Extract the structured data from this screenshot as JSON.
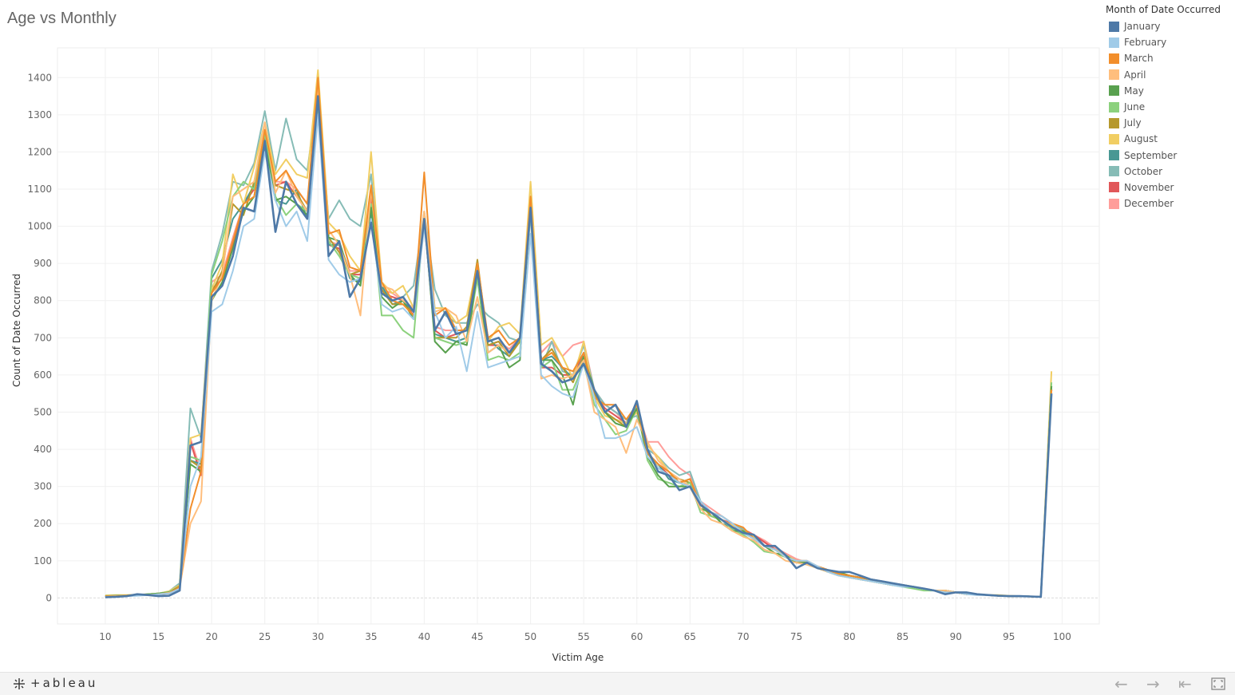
{
  "title": "Age vs Monthly",
  "footer": {
    "brand": "+ableau",
    "icons": [
      "undo-icon",
      "redo-icon",
      "revert-icon",
      "fullscreen-icon"
    ]
  },
  "legend": {
    "title": "Month of Date Occurred"
  },
  "chart_data": {
    "type": "line",
    "title": "Age vs Monthly",
    "xlabel": "Victim Age",
    "ylabel": "Count of Date Occurred",
    "xlim": [
      5.5,
      103.5
    ],
    "ylim": [
      -70,
      1480
    ],
    "x_ticks": [
      10,
      15,
      20,
      25,
      30,
      35,
      40,
      45,
      50,
      55,
      60,
      65,
      70,
      75,
      80,
      85,
      90,
      95,
      100
    ],
    "y_ticks": [
      0,
      100,
      200,
      300,
      400,
      500,
      600,
      700,
      800,
      900,
      1000,
      1100,
      1200,
      1300,
      1400
    ],
    "grid": true,
    "legend_position": "right",
    "x": [
      10,
      11,
      12,
      13,
      14,
      15,
      16,
      17,
      18,
      19,
      20,
      21,
      22,
      23,
      24,
      25,
      26,
      27,
      28,
      29,
      30,
      31,
      32,
      33,
      34,
      35,
      36,
      37,
      38,
      39,
      40,
      41,
      42,
      43,
      44,
      45,
      46,
      47,
      48,
      49,
      50,
      51,
      52,
      53,
      54,
      55,
      56,
      57,
      58,
      59,
      60,
      61,
      62,
      63,
      64,
      65,
      66,
      67,
      68,
      69,
      70,
      71,
      72,
      73,
      74,
      75,
      76,
      77,
      78,
      79,
      80,
      81,
      82,
      83,
      84,
      85,
      86,
      87,
      88,
      89,
      90,
      91,
      92,
      93,
      94,
      95,
      96,
      97,
      98,
      99
    ],
    "series": [
      {
        "name": "January",
        "color": "#4e79a7",
        "values": [
          2,
          3,
          5,
          10,
          8,
          5,
          6,
          20,
          410,
          420,
          810,
          840,
          920,
          1050,
          1040,
          1230,
          985,
          1120,
          1060,
          1020,
          1350,
          920,
          960,
          810,
          860,
          1010,
          820,
          800,
          810,
          770,
          1020,
          720,
          770,
          710,
          720,
          880,
          690,
          700,
          660,
          700,
          1050,
          630,
          610,
          580,
          590,
          630,
          560,
          500,
          520,
          460,
          530,
          400,
          340,
          330,
          290,
          300,
          250,
          230,
          210,
          190,
          175,
          170,
          140,
          140,
          115,
          80,
          95,
          80,
          75,
          70,
          70,
          60,
          50,
          45,
          40,
          35,
          30,
          25,
          20,
          10,
          15,
          15,
          10,
          8,
          6,
          5,
          5,
          4,
          3,
          550
        ]
      },
      {
        "name": "February",
        "color": "#a0cbe8",
        "values": [
          3,
          4,
          5,
          6,
          8,
          10,
          12,
          25,
          300,
          380,
          770,
          790,
          880,
          1000,
          1020,
          1200,
          1070,
          1000,
          1040,
          960,
          1300,
          910,
          870,
          850,
          860,
          1020,
          790,
          770,
          780,
          750,
          1000,
          770,
          700,
          730,
          610,
          770,
          620,
          630,
          640,
          650,
          980,
          600,
          570,
          550,
          540,
          630,
          540,
          430,
          430,
          440,
          460,
          380,
          350,
          330,
          310,
          300,
          260,
          230,
          220,
          200,
          175,
          160,
          140,
          130,
          110,
          100,
          100,
          85,
          70,
          60,
          55,
          50,
          45,
          40,
          35,
          30,
          30,
          25,
          20,
          15,
          15,
          10,
          8,
          8,
          6,
          5,
          5,
          4,
          3,
          550
        ]
      },
      {
        "name": "March",
        "color": "#f28e2b",
        "values": [
          5,
          5,
          6,
          8,
          8,
          10,
          12,
          30,
          240,
          340,
          820,
          860,
          960,
          1060,
          1080,
          1260,
          1120,
          1150,
          1100,
          1060,
          1400,
          980,
          990,
          890,
          880,
          1110,
          850,
          800,
          790,
          760,
          1145,
          760,
          780,
          720,
          720,
          900,
          700,
          720,
          680,
          700,
          1080,
          640,
          660,
          620,
          610,
          660,
          540,
          520,
          520,
          480,
          520,
          390,
          360,
          340,
          310,
          320,
          250,
          230,
          220,
          200,
          190,
          160,
          140,
          130,
          110,
          100,
          100,
          85,
          75,
          65,
          60,
          55,
          50,
          45,
          40,
          35,
          30,
          25,
          20,
          15,
          15,
          10,
          10,
          8,
          6,
          5,
          5,
          4,
          3,
          560
        ]
      },
      {
        "name": "April",
        "color": "#ffbe7d",
        "values": [
          4,
          5,
          6,
          7,
          8,
          10,
          14,
          28,
          200,
          260,
          800,
          870,
          1080,
          1100,
          1120,
          1280,
          1090,
          1150,
          1080,
          1040,
          1380,
          990,
          950,
          870,
          760,
          1100,
          840,
          830,
          800,
          780,
          1040,
          770,
          780,
          760,
          690,
          810,
          660,
          680,
          660,
          700,
          1060,
          590,
          600,
          590,
          600,
          640,
          500,
          480,
          460,
          390,
          480,
          420,
          370,
          340,
          320,
          300,
          240,
          210,
          200,
          180,
          165,
          155,
          130,
          120,
          100,
          95,
          90,
          80,
          70,
          60,
          55,
          50,
          45,
          40,
          35,
          35,
          30,
          25,
          20,
          20,
          15,
          10,
          10,
          8,
          6,
          5,
          5,
          4,
          3,
          560
        ]
      },
      {
        "name": "May",
        "color": "#59a14f",
        "values": [
          5,
          6,
          6,
          8,
          10,
          12,
          15,
          30,
          360,
          340,
          800,
          850,
          940,
          1040,
          1080,
          1230,
          1070,
          1080,
          1060,
          1030,
          1350,
          970,
          960,
          870,
          840,
          1050,
          810,
          780,
          800,
          750,
          1030,
          690,
          660,
          690,
          680,
          880,
          660,
          680,
          620,
          640,
          1070,
          640,
          640,
          600,
          520,
          650,
          560,
          500,
          470,
          460,
          510,
          380,
          330,
          300,
          300,
          300,
          240,
          230,
          200,
          180,
          180,
          160,
          140,
          120,
          115,
          95,
          95,
          80,
          75,
          70,
          60,
          55,
          45,
          40,
          35,
          35,
          30,
          25,
          20,
          20,
          15,
          10,
          10,
          8,
          6,
          5,
          5,
          4,
          3,
          570
        ]
      },
      {
        "name": "June",
        "color": "#8cd17d",
        "values": [
          6,
          5,
          6,
          8,
          10,
          12,
          16,
          30,
          380,
          370,
          870,
          960,
          1080,
          1120,
          1100,
          1250,
          1080,
          1030,
          1060,
          1040,
          1330,
          960,
          920,
          870,
          860,
          1060,
          760,
          760,
          720,
          700,
          1030,
          700,
          690,
          680,
          690,
          860,
          640,
          650,
          640,
          660,
          1060,
          620,
          640,
          560,
          560,
          630,
          520,
          480,
          440,
          450,
          510,
          370,
          320,
          310,
          300,
          310,
          230,
          220,
          210,
          185,
          170,
          150,
          125,
          120,
          110,
          95,
          90,
          80,
          70,
          60,
          55,
          50,
          45,
          40,
          35,
          30,
          25,
          20,
          20,
          15,
          15,
          10,
          10,
          8,
          6,
          5,
          5,
          4,
          3,
          580
        ]
      },
      {
        "name": "July",
        "color": "#b6992d",
        "values": [
          5,
          6,
          7,
          9,
          10,
          12,
          15,
          32,
          370,
          350,
          820,
          880,
          1060,
          1030,
          1120,
          1250,
          1110,
          1100,
          1090,
          1040,
          1370,
          970,
          930,
          870,
          880,
          1100,
          830,
          790,
          790,
          770,
          1020,
          700,
          700,
          700,
          730,
          910,
          680,
          690,
          650,
          690,
          1060,
          640,
          670,
          620,
          580,
          650,
          550,
          500,
          480,
          460,
          510,
          390,
          350,
          330,
          320,
          310,
          250,
          220,
          210,
          190,
          180,
          160,
          140,
          130,
          110,
          95,
          95,
          85,
          75,
          65,
          60,
          55,
          45,
          45,
          40,
          35,
          30,
          25,
          20,
          20,
          15,
          10,
          10,
          8,
          6,
          5,
          5,
          4,
          3,
          570
        ]
      },
      {
        "name": "August",
        "color": "#f1ce63",
        "values": [
          7,
          8,
          8,
          9,
          10,
          12,
          18,
          35,
          430,
          440,
          830,
          900,
          1140,
          1060,
          1160,
          1280,
          1140,
          1180,
          1140,
          1130,
          1420,
          1010,
          980,
          920,
          880,
          1200,
          850,
          820,
          840,
          780,
          1040,
          780,
          780,
          740,
          760,
          900,
          690,
          730,
          740,
          710,
          1120,
          680,
          700,
          650,
          590,
          690,
          540,
          490,
          480,
          470,
          500,
          410,
          380,
          340,
          320,
          300,
          250,
          220,
          210,
          195,
          180,
          165,
          140,
          130,
          115,
          100,
          95,
          85,
          75,
          70,
          60,
          55,
          50,
          45,
          40,
          35,
          30,
          25,
          20,
          20,
          15,
          15,
          10,
          8,
          8,
          6,
          5,
          4,
          3,
          610
        ]
      },
      {
        "name": "September",
        "color": "#499894",
        "values": [
          4,
          5,
          6,
          8,
          10,
          12,
          14,
          30,
          370,
          360,
          860,
          910,
          1020,
          1060,
          1110,
          1210,
          1070,
          1060,
          1100,
          1020,
          1360,
          950,
          950,
          860,
          850,
          1030,
          840,
          790,
          800,
          770,
          1020,
          710,
          700,
          690,
          700,
          880,
          700,
          670,
          650,
          700,
          1060,
          640,
          650,
          620,
          590,
          650,
          560,
          500,
          480,
          470,
          520,
          390,
          360,
          320,
          310,
          320,
          250,
          230,
          200,
          190,
          175,
          160,
          140,
          130,
          110,
          95,
          95,
          80,
          70,
          65,
          55,
          50,
          45,
          40,
          35,
          35,
          30,
          25,
          20,
          15,
          15,
          10,
          10,
          8,
          6,
          5,
          5,
          4,
          3,
          560
        ]
      },
      {
        "name": "October",
        "color": "#86bcb6",
        "values": [
          5,
          6,
          6,
          8,
          10,
          12,
          18,
          40,
          510,
          430,
          880,
          980,
          1120,
          1110,
          1170,
          1310,
          1150,
          1290,
          1180,
          1150,
          1360,
          1020,
          1070,
          1020,
          1000,
          1140,
          840,
          800,
          810,
          840,
          1040,
          830,
          760,
          740,
          740,
          790,
          760,
          740,
          700,
          690,
          1030,
          620,
          690,
          610,
          600,
          680,
          560,
          520,
          500,
          480,
          490,
          400,
          380,
          350,
          330,
          340,
          260,
          230,
          220,
          200,
          185,
          165,
          140,
          130,
          115,
          100,
          95,
          80,
          70,
          65,
          60,
          55,
          50,
          45,
          40,
          35,
          30,
          25,
          20,
          20,
          15,
          10,
          10,
          8,
          6,
          5,
          5,
          4,
          3,
          560
        ]
      },
      {
        "name": "November",
        "color": "#e15759",
        "values": [
          3,
          4,
          5,
          7,
          8,
          10,
          12,
          25,
          420,
          330,
          830,
          860,
          950,
          1060,
          1100,
          1240,
          1110,
          1120,
          1080,
          1040,
          1340,
          950,
          940,
          870,
          870,
          1080,
          820,
          810,
          800,
          760,
          1030,
          720,
          700,
          710,
          720,
          860,
          680,
          680,
          660,
          700,
          1050,
          620,
          620,
          600,
          600,
          660,
          550,
          510,
          490,
          470,
          500,
          390,
          360,
          330,
          310,
          300,
          260,
          220,
          210,
          200,
          185,
          170,
          150,
          130,
          115,
          100,
          95,
          85,
          75,
          65,
          60,
          55,
          50,
          45,
          40,
          35,
          30,
          25,
          20,
          20,
          15,
          10,
          10,
          8,
          6,
          5,
          5,
          4,
          3,
          560
        ]
      },
      {
        "name": "December",
        "color": "#ff9d9a",
        "values": [
          4,
          5,
          6,
          8,
          9,
          11,
          14,
          28,
          430,
          340,
          850,
          870,
          970,
          1060,
          1110,
          1250,
          1120,
          1120,
          1100,
          1060,
          1360,
          960,
          950,
          880,
          880,
          1080,
          830,
          820,
          800,
          770,
          1040,
          730,
          720,
          720,
          720,
          880,
          680,
          690,
          670,
          700,
          1080,
          660,
          690,
          650,
          680,
          690,
          560,
          520,
          500,
          470,
          510,
          420,
          420,
          380,
          350,
          330,
          260,
          240,
          220,
          200,
          185,
          170,
          155,
          135,
          120,
          105,
          95,
          85,
          75,
          65,
          60,
          55,
          50,
          45,
          40,
          35,
          30,
          25,
          20,
          20,
          15,
          12,
          10,
          8,
          6,
          5,
          5,
          4,
          3,
          560
        ]
      }
    ]
  }
}
